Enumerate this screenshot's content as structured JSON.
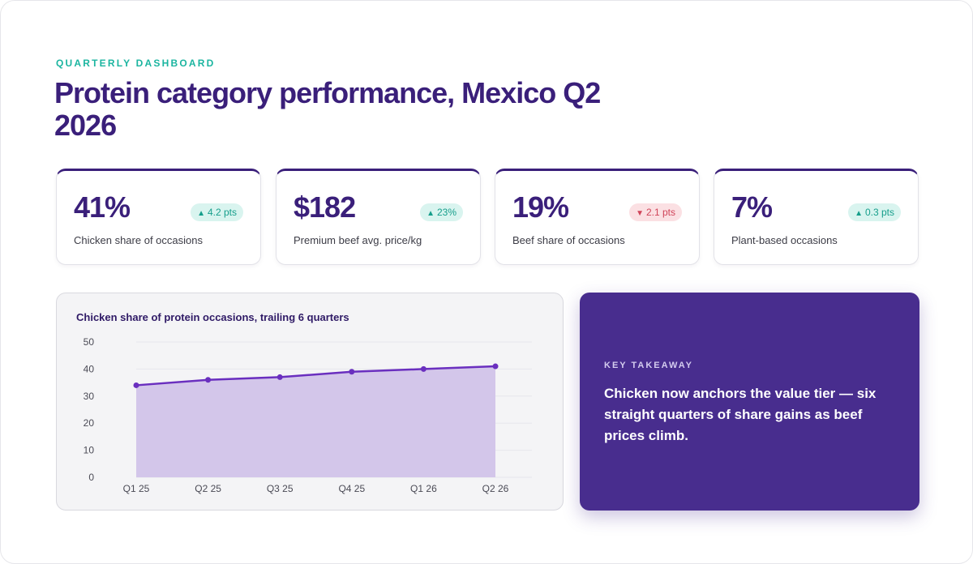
{
  "header": {
    "eyebrow": "QUARTERLY DASHBOARD",
    "title": "Protein category performance, Mexico Q2 2026"
  },
  "kpis": [
    {
      "value": "41%",
      "label": "Chicken share of occasions",
      "delta": "4.2 pts",
      "direction": "up",
      "arrow": "▲"
    },
    {
      "value": "$182",
      "label": "Premium beef avg. price/kg",
      "delta": "23%",
      "direction": "up",
      "arrow": "▲"
    },
    {
      "value": "19%",
      "label": "Beef share of occasions",
      "delta": "2.1 pts",
      "direction": "down",
      "arrow": "▼"
    },
    {
      "value": "7%",
      "label": "Plant-based occasions",
      "delta": "0.3 pts",
      "direction": "up",
      "arrow": "▲"
    }
  ],
  "colors": {
    "accent": "#3a1f7a",
    "teal": "#1bb5a0",
    "up": "#169e8b",
    "down": "#d04459",
    "series_line": "#6a2fbf",
    "series_fill": "#d3c6ea",
    "takeaway_bg": "#482d8e"
  },
  "chart_data": {
    "type": "area",
    "title": "Chicken share of protein occasions, trailing 6 quarters",
    "categories": [
      "Q1 25",
      "Q2 25",
      "Q3 25",
      "Q4 25",
      "Q1 26",
      "Q2 26"
    ],
    "values": [
      34,
      36,
      37,
      39,
      40,
      41
    ],
    "ylim": [
      0,
      50
    ],
    "yticks": [
      0,
      10,
      20,
      30,
      40,
      50
    ],
    "grid": true,
    "legend": "none"
  },
  "takeaway": {
    "kicker": "KEY TAKEAWAY",
    "text": "Chicken now anchors the value tier — six straight quarters of share gains as beef prices climb."
  }
}
